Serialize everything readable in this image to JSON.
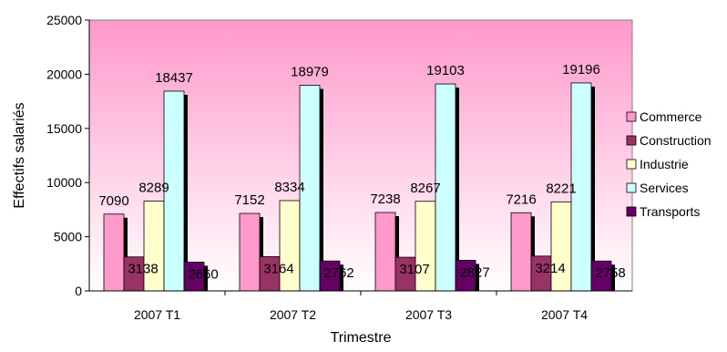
{
  "chart_data": {
    "type": "bar",
    "title": "",
    "xlabel": "Trimestre",
    "ylabel": "Effectifs salariés",
    "ylim": [
      0,
      25000
    ],
    "yticks": [
      0,
      5000,
      10000,
      15000,
      20000,
      25000
    ],
    "categories": [
      "2007 T1",
      "2007 T2",
      "2007 T3",
      "2007 T4"
    ],
    "series": [
      {
        "name": "Commerce",
        "values": [
          7090,
          7152,
          7238,
          7216
        ],
        "color": "#ff99cc"
      },
      {
        "name": "Construction",
        "values": [
          3138,
          3164,
          3107,
          3214
        ],
        "color": "#993366"
      },
      {
        "name": "Industrie",
        "values": [
          8289,
          8334,
          8267,
          8221
        ],
        "color": "#ffffcc"
      },
      {
        "name": "Services",
        "values": [
          18437,
          18979,
          19103,
          19196
        ],
        "color": "#ccffff"
      },
      {
        "name": "Transports",
        "values": [
          2660,
          2762,
          2827,
          2758
        ],
        "color": "#660066"
      }
    ],
    "legend_position": "right",
    "background": {
      "top": "#ff99cc",
      "bottom": "#ffffff"
    },
    "grid": false
  }
}
